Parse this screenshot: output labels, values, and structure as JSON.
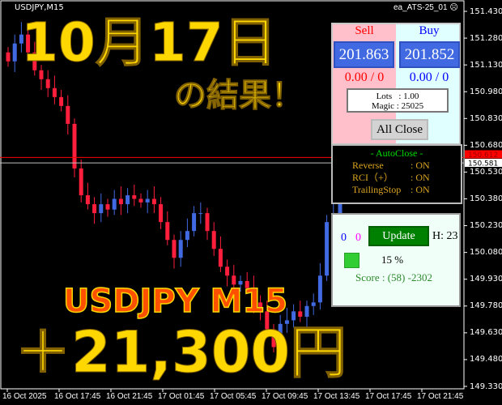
{
  "window": {
    "symbol": "USDJPY,M15",
    "ea_name": "ea_ATS-25_01",
    "ea_status_icon": "frown-face-icon"
  },
  "chart_data": {
    "type": "candlestick",
    "ylim": [
      149.33,
      151.49
    ],
    "y_ticks": [
      "151.430",
      "151.280",
      "151.130",
      "150.980",
      "150.830",
      "150.680",
      "150.530",
      "150.380",
      "150.230",
      "150.080",
      "149.930",
      "149.780",
      "149.630",
      "149.480",
      "149.330"
    ],
    "x_ticks": [
      "16 Oct 2025",
      "16 Oct 17:45",
      "16 Oct 21:45",
      "17 Oct 01:45",
      "17 Oct 05:45",
      "17 Oct 09:45",
      "17 Oct 13:45",
      "17 Oct 17:45",
      "17 Oct 21:45"
    ],
    "closes": [
      151.15,
      151.25,
      151.3,
      151.2,
      151.1,
      151.05,
      151.0,
      150.95,
      150.9,
      150.8,
      150.55,
      150.4,
      150.35,
      150.3,
      150.35,
      150.32,
      150.38,
      150.35,
      150.4,
      150.38,
      150.36,
      150.38,
      150.35,
      150.25,
      150.15,
      150.05,
      150.15,
      150.2,
      150.3,
      150.3,
      150.2,
      150.1,
      150.0,
      149.95,
      149.9,
      149.92,
      149.88,
      149.8,
      149.75,
      149.65,
      149.55,
      149.68,
      149.7,
      149.75,
      149.72,
      149.78,
      149.8,
      149.95,
      150.25,
      150.3,
      150.4,
      150.45,
      150.5,
      150.48,
      150.45,
      150.42,
      150.45,
      150.5
    ],
    "bid_line": {
      "label": "150.612",
      "value": 150.612,
      "color": "#ff0000"
    },
    "ask_line": {
      "label": "150.581",
      "value": 150.581,
      "color": "#c0c0c0"
    },
    "up_color": "#4169e1",
    "down_color": "#ff1e3c"
  },
  "overlay": {
    "date": "10月17日",
    "subtitle": "の結果！",
    "pair": "USDJPY M15",
    "profit": "＋21,300円"
  },
  "trade_panel": {
    "sell_label": "Sell",
    "buy_label": "Buy",
    "sell_price": "201.863",
    "buy_price": "201.852",
    "sell_pl": "0.00 / 0",
    "buy_pl": "0.00 / 0",
    "lots": "Lots   : 1.00",
    "magic": "Magic : 25025",
    "all_close": "All Close"
  },
  "autoclose_panel": {
    "title": "- AutoClose -",
    "rows": [
      {
        "label": "Reverse",
        "value": ": ON"
      },
      {
        "label": "RCI（+）",
        "value": ": ON"
      },
      {
        "label": "TrailingStop",
        "value": ": ON"
      }
    ]
  },
  "status_panel": {
    "count_blue": "0",
    "count_magenta": "0",
    "update": "Update",
    "hour": "H: 23",
    "percent": "15 %",
    "score": "Score : (58) -2302"
  }
}
